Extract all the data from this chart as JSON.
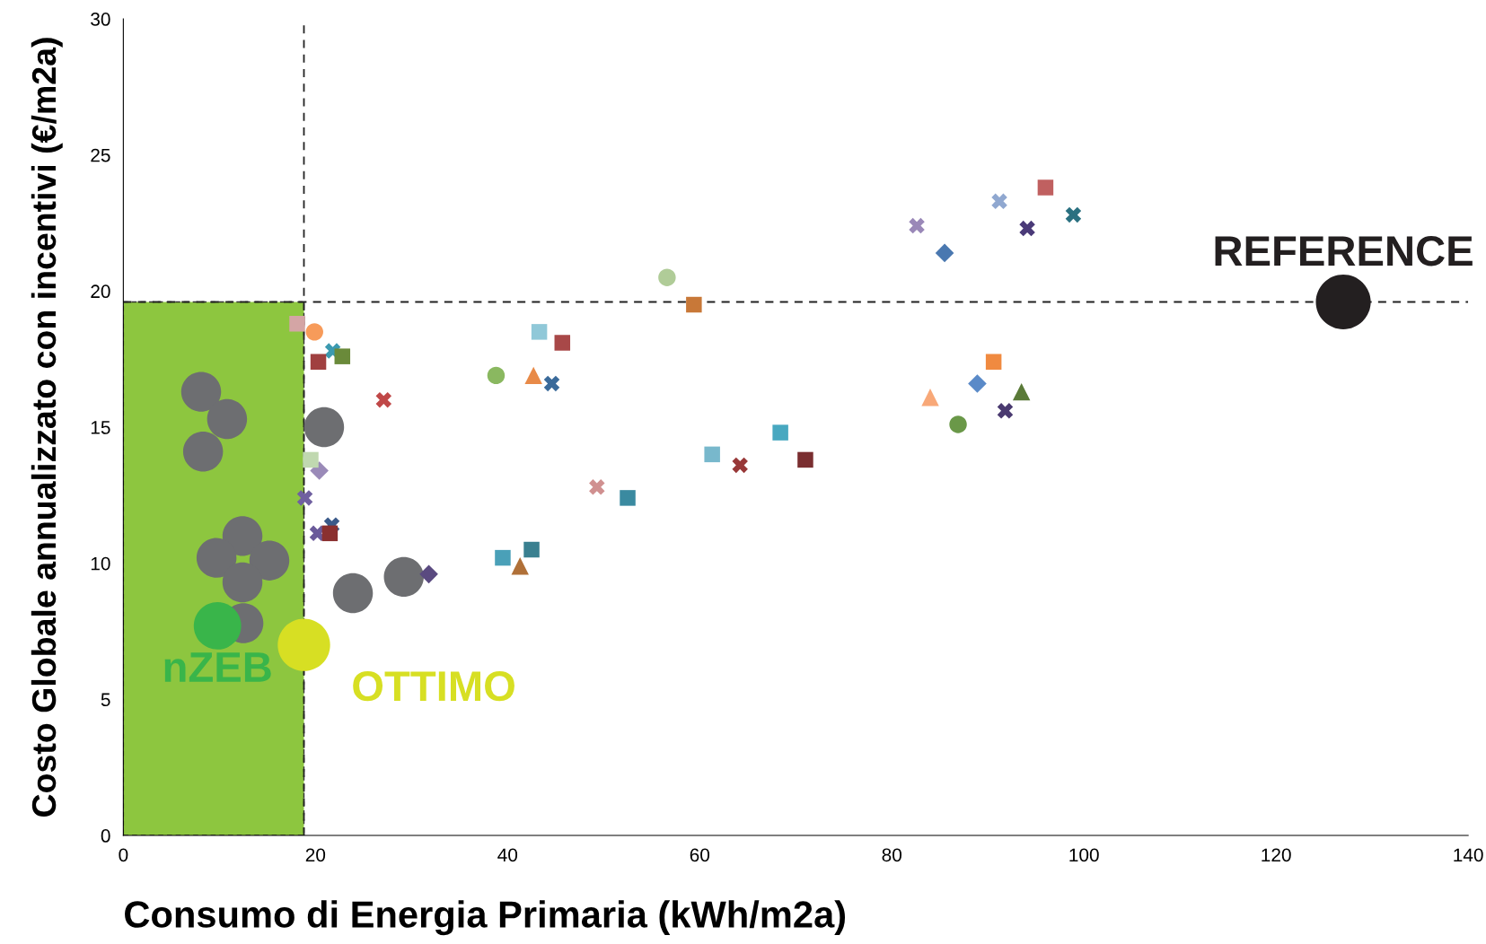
{
  "chart_data": {
    "type": "scatter",
    "xlabel": "Consumo di Energia Primaria (kWh/m2a)",
    "ylabel": "Costo Globale annualizzato con incentivi (€/m2a)",
    "xlim": [
      0,
      140
    ],
    "xticks": [
      0,
      20,
      40,
      60,
      80,
      100,
      120,
      140
    ],
    "ylim": [
      0,
      30
    ],
    "yticks": [
      0,
      5,
      10,
      15,
      20,
      25,
      30
    ],
    "grid": false,
    "legend": false,
    "bands": [
      {
        "axis": "x",
        "from": 0,
        "to": 18.8,
        "color": "#8dc63f"
      }
    ],
    "ref_lines": [
      {
        "axis": "x",
        "value": 18.8,
        "color": "#222222",
        "line_style": "dashed"
      },
      {
        "axis": "y",
        "value": 19.6,
        "color": "#222222",
        "line_style": "dashed"
      }
    ],
    "series": [
      {
        "marker": "circle",
        "color": "#6d6e71",
        "x": [
          8.1,
          10.8,
          8.3,
          20.9,
          12.4,
          9.7,
          15.2,
          12.4,
          12.5,
          23.9,
          29.2
        ],
        "values": [
          16.3,
          15.3,
          14.1,
          15.0,
          11.0,
          10.2,
          10.1,
          9.3,
          7.8,
          8.9,
          9.5
        ]
      },
      {
        "name": "nZEB",
        "marker": "circle",
        "color": "#39b54a",
        "x": [
          9.8
        ],
        "values": [
          7.7
        ]
      },
      {
        "name": "OTTIMO",
        "marker": "circle",
        "color": "#d7df23",
        "x": [
          18.8
        ],
        "values": [
          7.0
        ]
      },
      {
        "name": "REFERENCE",
        "marker": "circle",
        "color": "#231f20",
        "x": [
          127.0
        ],
        "values": [
          19.6
        ]
      },
      {
        "marker": "circle",
        "x": [
          19.9,
          38.8,
          56.6,
          86.9
        ],
        "values": [
          18.5,
          16.9,
          20.5,
          15.1
        ],
        "colors": [
          "#f79b5a",
          "#8ab860",
          "#b0cc98",
          "#6a9848"
        ]
      },
      {
        "marker": "square",
        "x": [
          18.1,
          39.5,
          42.5,
          45.7,
          61.3,
          71.0,
          96.0
        ],
        "values": [
          18.8,
          10.2,
          10.5,
          18.1,
          14.0,
          13.8,
          23.8
        ],
        "colors": [
          "#d4a5a5",
          "#4aa0b8",
          "#3a8090",
          "#a84848",
          "#78b8cc",
          "#7a2e30",
          "#c06060"
        ]
      },
      {
        "marker": "triangle",
        "x": [
          41.3,
          42.7,
          84.0,
          93.5
        ],
        "values": [
          9.9,
          16.9,
          16.1,
          16.3
        ],
        "colors": [
          "#b07038",
          "#e88a48",
          "#f8a878",
          "#5a7a38"
        ]
      },
      {
        "marker": "diamond",
        "x": [
          20.4,
          31.8,
          85.5,
          88.9
        ],
        "values": [
          13.4,
          9.6,
          21.4,
          16.6
        ],
        "colors": [
          "#9a8ab8",
          "#5a4a80",
          "#4a78b0",
          "#5a8ac8"
        ]
      },
      {
        "marker": "cross",
        "x": [
          21.7,
          82.6,
          94.1,
          21.8,
          27.1,
          18.9,
          20.2,
          44.6,
          49.3,
          64.2,
          91.2,
          98.9,
          91.8
        ],
        "values": [
          11.4,
          22.4,
          22.3,
          17.8,
          16.0,
          12.4,
          11.1,
          16.6,
          12.8,
          13.6,
          23.3,
          22.8,
          15.6
        ],
        "colors": [
          "#3a5a8a",
          "#9a88b8",
          "#4a3a78",
          "#3c9ab0",
          "#c04848",
          "#7060a0",
          "#6a5a9a",
          "#3a6a9a",
          "#d09090",
          "#983838",
          "#90a8d0",
          "#2a7080",
          "#4a3a70"
        ]
      },
      {
        "marker": "square",
        "x": [
          20.3,
          22.8,
          19.5,
          21.5,
          43.3,
          59.4,
          52.5,
          68.4,
          90.6
        ],
        "values": [
          17.4,
          17.6,
          13.8,
          11.1,
          18.5,
          19.5,
          12.4,
          14.8,
          17.4
        ],
        "colors": [
          "#a04040",
          "#6a8a3a",
          "#c0d8b0",
          "#8a3030",
          "#90c8d8",
          "#c87838",
          "#3a8aa0",
          "#48a8c0",
          "#f08a40"
        ]
      }
    ]
  }
}
